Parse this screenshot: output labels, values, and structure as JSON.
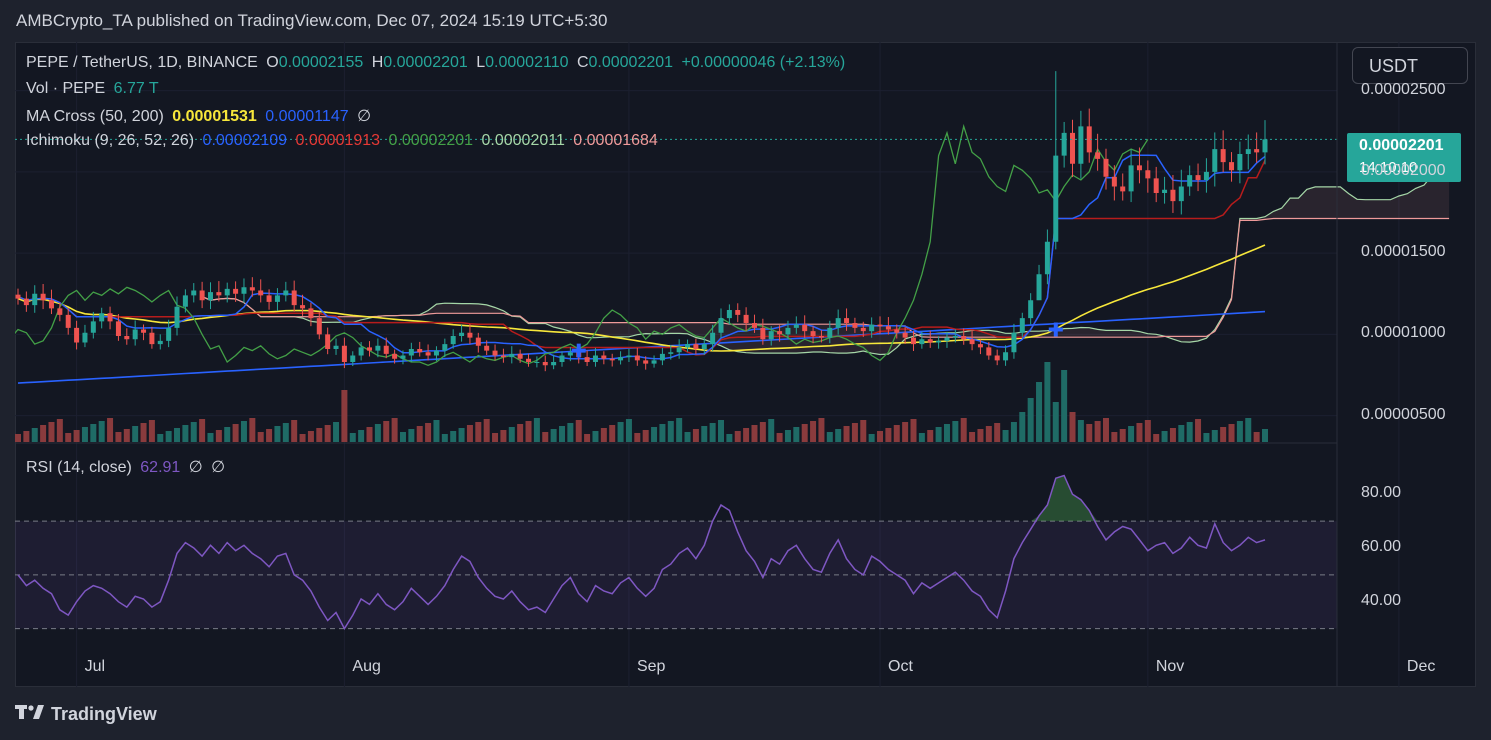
{
  "header": {
    "publisher": "AMBCrypto_TA published on TradingView.com, Dec 07, 2024 15:19 UTC+5:30"
  },
  "symbol_line": {
    "symbol": "PEPE / TetherUS, 1D, BINANCE",
    "o_label": "O",
    "o": "0.00002155",
    "h_label": "H",
    "h": "0.00002201",
    "l_label": "L",
    "l": "0.00002110",
    "c_label": "C",
    "c": "0.00002201",
    "change": "+0.00000046 (+2.13%)"
  },
  "volume_line": {
    "label": "Vol · PEPE",
    "value": "6.77 T"
  },
  "ma_line": {
    "label": "MA Cross (50, 200)",
    "v1": "0.00001531",
    "v2": "0.00001147",
    "extra": "∅"
  },
  "ichimoku_line": {
    "label": "Ichimoku (9, 26, 52, 26)",
    "v1": "0.00002109",
    "v2": "0.00001913",
    "v3": "0.00002201",
    "v4": "0.00002011",
    "v5": "0.00001684"
  },
  "rsi_line": {
    "label": "RSI (14, close)",
    "value": "62.91",
    "e1": "∅",
    "e2": "∅"
  },
  "currency_button": "USDT",
  "last_price": {
    "price": "0.00002201",
    "countdown": "14:10:10"
  },
  "footer": {
    "brand": "TradingView"
  },
  "colors": {
    "up": "#26a69a",
    "down": "#ef5350",
    "ma50": "#f7e73b",
    "ma200": "#2962ff",
    "tenkan": "#2962ff",
    "kijun": "#b71c1c",
    "chikou": "#43a047",
    "span_a": "#a5d6a7",
    "span_b": "#ef9a9a",
    "rsi": "#7e57c2"
  },
  "chart_data": [
    {
      "type": "candlestick",
      "title": "PEPE / TetherUS, 1D, BINANCE",
      "x_ticks": [
        "Jul",
        "Aug",
        "Sep",
        "Oct",
        "Nov",
        "Dec"
      ],
      "y_ticks": [
        "0.00002500",
        "0.00002000",
        "0.00001500",
        "0.00001000",
        "0.00000500"
      ],
      "ylim": [
        3.5e-06,
        2.75e-05
      ],
      "close_series": [
        1.22e-05,
        1.18e-05,
        1.25e-05,
        1.21e-05,
        1.16e-05,
        1.12e-05,
        1.04e-05,
        9.5e-06,
        1.01e-05,
        1.08e-05,
        1.13e-05,
        1.08e-05,
        9.9e-06,
        9.7e-06,
        1.03e-05,
        1.01e-05,
        9.4e-06,
        9.6e-06,
        1.04e-05,
        1.17e-05,
        1.24e-05,
        1.27e-05,
        1.21e-05,
        1.26e-05,
        1.24e-05,
        1.28e-05,
        1.25e-05,
        1.29e-05,
        1.27e-05,
        1.24e-05,
        1.2e-05,
        1.24e-05,
        1.27e-05,
        1.18e-05,
        1.16e-05,
        1.1e-05,
        1e-05,
        9.1e-06,
        9.3e-06,
        8.3e-06,
        8.7e-06,
        9.2e-06,
        9e-06,
        9.3e-06,
        8.8e-06,
        8.5e-06,
        8.7e-06,
        9.1e-06,
        8.9e-06,
        8.7e-06,
        9e-06,
        9.4e-06,
        9.9e-06,
        1.01e-05,
        9.8e-06,
        9.3e-06,
        9e-06,
        8.7e-06,
        8.6e-06,
        8.8e-06,
        8.5e-06,
        8.3e-06,
        8.3e-06,
        8.1e-06,
        8.3e-06,
        8.7e-06,
        8.9e-06,
        8.6e-06,
        8.3e-06,
        8.7e-06,
        8.5e-06,
        8.4e-06,
        8.6e-06,
        8.7e-06,
        8.4e-06,
        8.2e-06,
        8.4e-06,
        8.8e-06,
        8.9e-06,
        9.2e-06,
        9.4e-06,
        9.1e-06,
        9.4e-06,
        1.01e-05,
        1.1e-05,
        1.15e-05,
        1.12e-05,
        1.07e-05,
        1.04e-05,
        9.7e-06,
        1.02e-05,
        1e-05,
        1.04e-05,
        1.06e-05,
        1.02e-05,
        9.9e-06,
        9.8e-06,
        1.04e-05,
        1.1e-05,
        1.07e-05,
        1.04e-05,
        1.02e-05,
        1.06e-05,
        1.05e-05,
        1.03e-05,
        1.01e-05,
        9.8e-06,
        9.4e-06,
        9.7e-06,
        9.5e-06,
        9.6e-06,
        9.8e-06,
        9.9e-06,
        9.7e-06,
        9.4e-06,
        9.2e-06,
        8.7e-06,
        8.4e-06,
        8.9e-06,
        1.01e-05,
        1.1e-05,
        1.21e-05,
        1.37e-05,
        1.57e-05,
        2.1e-05,
        2.24e-05,
        2.05e-05,
        2.28e-05,
        2.12e-05,
        2.08e-05,
        1.97e-05,
        1.91e-05,
        1.88e-05,
        2.04e-05,
        2.01e-05,
        1.96e-05,
        1.87e-05,
        1.89e-05,
        1.82e-05,
        1.91e-05,
        1.98e-05,
        1.95e-05,
        2e-05,
        2.14e-05,
        2.06e-05,
        2.01e-05,
        2.11e-05,
        2.14e-05,
        2.12e-05,
        2.2e-05
      ]
    },
    {
      "type": "line",
      "title": "RSI (14, close)",
      "y_ticks": [
        "80.00",
        "60.00",
        "40.00"
      ],
      "ylim": [
        25,
        95
      ],
      "bands": [
        30,
        50,
        70
      ],
      "values": [
        50,
        46,
        48,
        45,
        43,
        37,
        35,
        40,
        44,
        46,
        45,
        43,
        40,
        38,
        42,
        41,
        38,
        40,
        48,
        58,
        62,
        60,
        57,
        61,
        58,
        62,
        59,
        61,
        58,
        56,
        53,
        57,
        58,
        50,
        48,
        44,
        38,
        33,
        36,
        30,
        35,
        41,
        39,
        43,
        39,
        37,
        40,
        45,
        42,
        39,
        42,
        46,
        52,
        57,
        55,
        49,
        45,
        42,
        41,
        44,
        40,
        37,
        38,
        36,
        41,
        46,
        49,
        43,
        40,
        46,
        44,
        43,
        47,
        49,
        45,
        42,
        45,
        52,
        54,
        58,
        60,
        56,
        61,
        70,
        76,
        74,
        66,
        59,
        55,
        49,
        56,
        54,
        59,
        61,
        56,
        52,
        51,
        58,
        63,
        56,
        52,
        50,
        57,
        55,
        52,
        50,
        48,
        43,
        47,
        45,
        47,
        49,
        51,
        48,
        44,
        42,
        37,
        34,
        44,
        56,
        62,
        67,
        72,
        76,
        86,
        87,
        80,
        78,
        74,
        68,
        63,
        66,
        68,
        67,
        63,
        59,
        61,
        62,
        58,
        60,
        64,
        61,
        60,
        69,
        62,
        59,
        61,
        64,
        62,
        63
      ]
    }
  ]
}
